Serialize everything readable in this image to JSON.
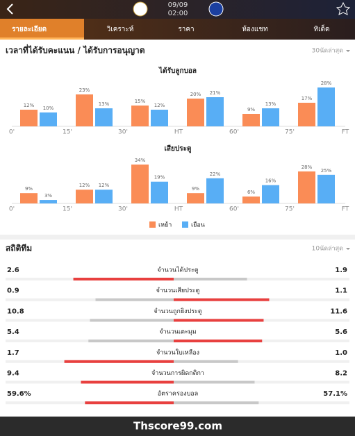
{
  "header": {
    "date": "09/09",
    "time": "02:00"
  },
  "tabs": [
    "รายละเอียด",
    "วิเคราะห์",
    "ราคา",
    "ห้องแชท",
    "ทิเด็ด"
  ],
  "scoring_section": {
    "title": "เวลาที่ได้รับคะแนน / ได้รับการอนุญาต",
    "filter": "30นัดล่าสุด"
  },
  "chart_data": [
    {
      "type": "bar",
      "title": "ได้รับลูกบอล",
      "x_labels": [
        "0'",
        "15'",
        "30'",
        "HT",
        "60'",
        "75'",
        "FT"
      ],
      "ylim": [
        0,
        28
      ],
      "series": [
        {
          "name": "เหย้า",
          "color": "#fa8c56",
          "values": [
            12,
            23,
            15,
            20,
            9,
            17
          ],
          "value_labels": [
            "12%",
            "23%",
            "15%",
            "20%",
            "9%",
            "17%"
          ]
        },
        {
          "name": "เยือน",
          "color": "#58aef5",
          "values": [
            10,
            13,
            12,
            21,
            13,
            28
          ],
          "value_labels": [
            "10%",
            "13%",
            "12%",
            "21%",
            "13%",
            "28%"
          ]
        }
      ]
    },
    {
      "type": "bar",
      "title": "เสียประตู",
      "x_labels": [
        "0'",
        "15'",
        "30'",
        "HT",
        "60'",
        "75'",
        "FT"
      ],
      "ylim": [
        0,
        34
      ],
      "series": [
        {
          "color": "#fa8c56",
          "values": [
            9,
            12,
            34,
            9,
            6,
            28
          ],
          "value_labels": [
            "9%",
            "12%",
            "34%",
            "9%",
            "6%",
            "28%"
          ]
        },
        {
          "color": "#58aef5",
          "values": [
            3,
            12,
            19,
            22,
            16,
            25
          ],
          "value_labels": [
            "3%",
            "12%",
            "19%",
            "22%",
            "16%",
            "25%"
          ]
        }
      ]
    }
  ],
  "team_stats": {
    "title": "สถิติทีม",
    "filter": "10นัดล่าสุด",
    "rows": [
      {
        "label": "จำนวนได้ประตู",
        "home": 2.6,
        "away": 1.9
      },
      {
        "label": "จำนวนเสียประตู",
        "home": 0.9,
        "away": 1.1
      },
      {
        "label": "จำนวนถูกยิงประตู",
        "home": 10.8,
        "away": 11.6
      },
      {
        "label": "จำนวนเตะมุม",
        "home": 5.4,
        "away": 5.6
      },
      {
        "label": "จำนวนใบเหลือง",
        "home": 1.7,
        "away": {
          "value": 1.0,
          "label": "1.0"
        }
      },
      {
        "label": "จำนวนการผิดกติกา",
        "home": 9.4,
        "away": 8.2
      },
      {
        "label": "อัตราครองบอล",
        "home": {
          "value": 59.6,
          "label": "59.6%"
        },
        "away": {
          "value": 57.1,
          "label": "57.1%"
        }
      }
    ]
  },
  "footer": "Thscore99.com"
}
